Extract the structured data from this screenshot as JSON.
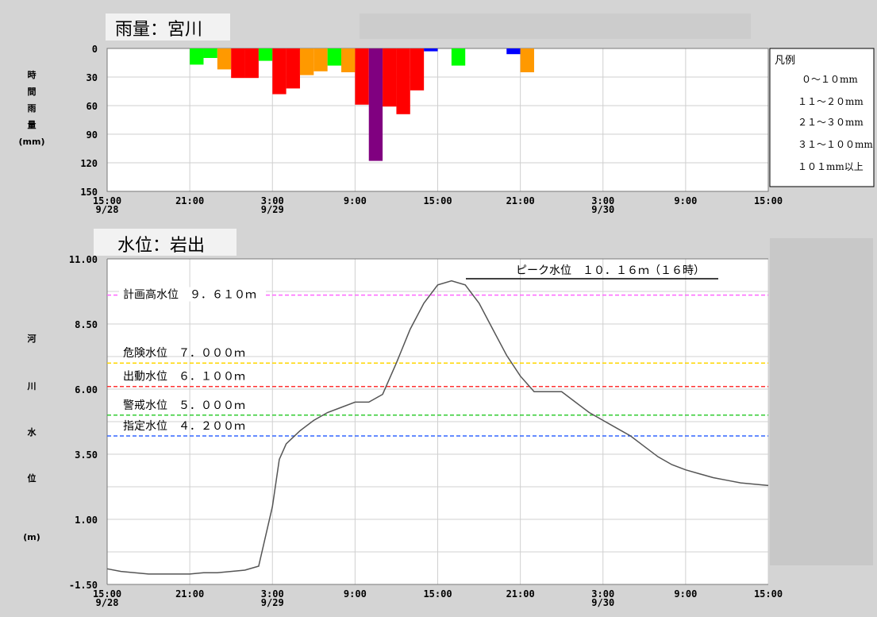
{
  "chart_data": [
    {
      "type": "bar",
      "title": "雨量：宮川",
      "ylabel_chars": [
        "時",
        "間",
        "雨",
        "量",
        "(mm)"
      ],
      "yticks": [
        "0",
        "30",
        "60",
        "90",
        "120",
        "150"
      ],
      "ylim": [
        0,
        150
      ],
      "y_inverted": true,
      "xlim_hours": [
        0,
        48
      ],
      "xticks": [
        {
          "t": 0,
          "label": "15:00",
          "sub": "9/28"
        },
        {
          "t": 6,
          "label": "21:00",
          "sub": ""
        },
        {
          "t": 12,
          "label": "3:00",
          "sub": "9/29"
        },
        {
          "t": 18,
          "label": "9:00",
          "sub": ""
        },
        {
          "t": 24,
          "label": "15:00",
          "sub": ""
        },
        {
          "t": 30,
          "label": "21:00",
          "sub": ""
        },
        {
          "t": 36,
          "label": "3:00",
          "sub": "9/30"
        },
        {
          "t": 42,
          "label": "9:00",
          "sub": ""
        },
        {
          "t": 48,
          "label": "15:00",
          "sub": ""
        }
      ],
      "series": [
        {
          "t": 6,
          "v": 17,
          "color": "#00ff00"
        },
        {
          "t": 7,
          "v": 10,
          "color": "#00ff00"
        },
        {
          "t": 8,
          "v": 22,
          "color": "#ff9900"
        },
        {
          "t": 9,
          "v": 31,
          "color": "#ff0000"
        },
        {
          "t": 10,
          "v": 31,
          "color": "#ff0000"
        },
        {
          "t": 11,
          "v": 13,
          "color": "#00ff00"
        },
        {
          "t": 12,
          "v": 48,
          "color": "#ff0000"
        },
        {
          "t": 13,
          "v": 42,
          "color": "#ff0000"
        },
        {
          "t": 14,
          "v": 28,
          "color": "#ff9900"
        },
        {
          "t": 15,
          "v": 24,
          "color": "#ff9900"
        },
        {
          "t": 16,
          "v": 18,
          "color": "#00ff00"
        },
        {
          "t": 17,
          "v": 25,
          "color": "#ff9900"
        },
        {
          "t": 18,
          "v": 59,
          "color": "#ff0000"
        },
        {
          "t": 19,
          "v": 118,
          "color": "#800080"
        },
        {
          "t": 20,
          "v": 61,
          "color": "#ff0000"
        },
        {
          "t": 21,
          "v": 69,
          "color": "#ff0000"
        },
        {
          "t": 22,
          "v": 44,
          "color": "#ff0000"
        },
        {
          "t": 23,
          "v": 3,
          "color": "#0000ff"
        },
        {
          "t": 25,
          "v": 18,
          "color": "#00ff00"
        },
        {
          "t": 29,
          "v": 6,
          "color": "#0000ff"
        },
        {
          "t": 30,
          "v": 25,
          "color": "#ff9900"
        }
      ],
      "legend": {
        "title": "凡例",
        "entries": [
          "０～１０mm",
          "１１～２０mm",
          "２１～３０mm",
          "３１～１００mm",
          "１０１mm以上"
        ],
        "placement": "right"
      }
    },
    {
      "type": "line",
      "title": "水位：岩出",
      "ylabel_chars": [
        "河",
        "川",
        "水",
        "位",
        "(m)"
      ],
      "yticks": [
        "11.00",
        "8.50",
        "6.00",
        "3.50",
        "1.00",
        "-1.50"
      ],
      "ylim": [
        -1.5,
        11.0
      ],
      "xlim_hours": [
        0,
        48
      ],
      "xticks": [
        {
          "t": 0,
          "label": "15:00",
          "sub": "9/28"
        },
        {
          "t": 6,
          "label": "21:00",
          "sub": ""
        },
        {
          "t": 12,
          "label": "3:00",
          "sub": "9/29"
        },
        {
          "t": 18,
          "label": "9:00",
          "sub": ""
        },
        {
          "t": 24,
          "label": "15:00",
          "sub": ""
        },
        {
          "t": 30,
          "label": "21:00",
          "sub": ""
        },
        {
          "t": 36,
          "label": "3:00",
          "sub": "9/30"
        },
        {
          "t": 42,
          "label": "9:00",
          "sub": ""
        },
        {
          "t": 48,
          "label": "15:00",
          "sub": ""
        }
      ],
      "series": [
        {
          "values": [
            [
              0,
              -0.9
            ],
            [
              1,
              -1.0
            ],
            [
              2,
              -1.05
            ],
            [
              3,
              -1.1
            ],
            [
              4,
              -1.1
            ],
            [
              5,
              -1.1
            ],
            [
              6,
              -1.1
            ],
            [
              7,
              -1.05
            ],
            [
              8,
              -1.05
            ],
            [
              9,
              -1.0
            ],
            [
              10,
              -0.95
            ],
            [
              11,
              -0.8
            ],
            [
              12,
              1.5
            ],
            [
              12.5,
              3.3
            ],
            [
              13,
              3.9
            ],
            [
              14,
              4.4
            ],
            [
              15,
              4.8
            ],
            [
              16,
              5.1
            ],
            [
              17,
              5.3
            ],
            [
              18,
              5.5
            ],
            [
              19,
              5.5
            ],
            [
              20,
              5.8
            ],
            [
              21,
              7.0
            ],
            [
              22,
              8.3
            ],
            [
              23,
              9.3
            ],
            [
              24,
              10.0
            ],
            [
              25,
              10.16
            ],
            [
              26,
              10.0
            ],
            [
              27,
              9.3
            ],
            [
              28,
              8.3
            ],
            [
              29,
              7.3
            ],
            [
              30,
              6.5
            ],
            [
              31,
              5.9
            ],
            [
              32,
              5.9
            ],
            [
              33,
              5.9
            ],
            [
              34,
              5.5
            ],
            [
              35,
              5.1
            ],
            [
              36,
              4.8
            ],
            [
              37,
              4.5
            ],
            [
              38,
              4.2
            ],
            [
              39,
              3.8
            ],
            [
              40,
              3.4
            ],
            [
              41,
              3.1
            ],
            [
              42,
              2.9
            ],
            [
              43,
              2.75
            ],
            [
              44,
              2.6
            ],
            [
              45,
              2.5
            ],
            [
              46,
              2.4
            ],
            [
              47,
              2.35
            ],
            [
              48,
              2.3
            ]
          ]
        }
      ],
      "levels": [
        {
          "label": "計画高水位　９．６１０ｍ",
          "value": 9.61,
          "color": "#ff66ff"
        },
        {
          "label": "危険水位　７．０００ｍ",
          "value": 7.0,
          "color": "#ffd700"
        },
        {
          "label": "出動水位　６．１００ｍ",
          "value": 6.1,
          "color": "#ff3333"
        },
        {
          "label": "警戒水位　５．０００ｍ",
          "value": 5.0,
          "color": "#33cc33"
        },
        {
          "label": "指定水位　４．２００ｍ",
          "value": 4.2,
          "color": "#3366ff"
        }
      ],
      "peak": {
        "label": "ピーク水位　１０．１６ｍ（１６時）",
        "value": 10.16
      }
    }
  ]
}
